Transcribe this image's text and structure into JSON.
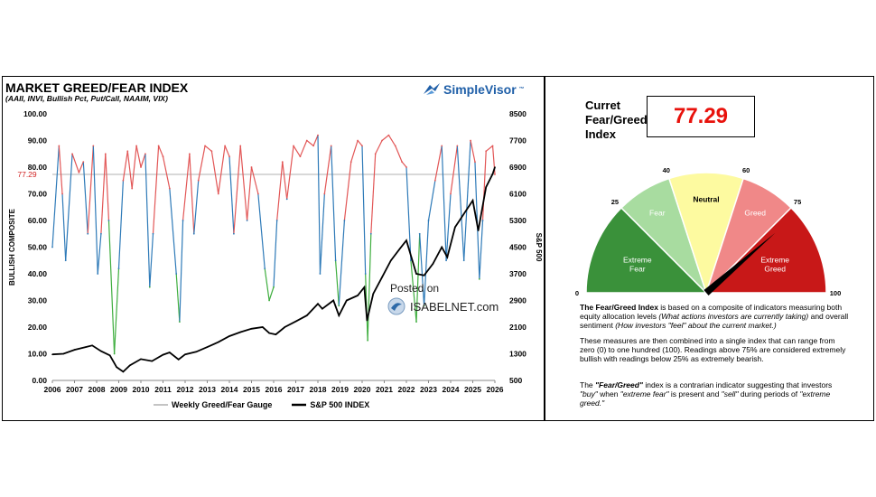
{
  "title": "MARKET GREED/FEAR INDEX",
  "subtitle": "(AAII, INVI, Bullish Pct, Put/Call, NAAIM, VIX)",
  "brand": {
    "name": "SimpleVisor",
    "tm": "™",
    "icon": "bird-logo-icon"
  },
  "watermark": {
    "posted_on": "Posted on",
    "site": "ISABELNET.com",
    "icon": "globe-logo-icon"
  },
  "colors": {
    "greed_red": "#e25656",
    "neutral_blue": "#2e7ab8",
    "fear_green": "#3fae3f",
    "sp500": "#000000",
    "refline": "#b0b0b0",
    "value_red": "#e8120c"
  },
  "chart_data": {
    "type": "line",
    "x_ticks": [
      "2006",
      "2007",
      "2008",
      "2009",
      "2010",
      "2011",
      "2012",
      "2013",
      "2014",
      "2015",
      "2016",
      "2017",
      "2018",
      "2019",
      "2020",
      "2021",
      "2022",
      "2023",
      "2024",
      "2025",
      "2026"
    ],
    "xlim": [
      2006,
      2026
    ],
    "y_left": {
      "label": "BULLISH COMPOSITE",
      "ticks": [
        "0.00",
        "10.00",
        "20.00",
        "30.00",
        "40.00",
        "50.00",
        "60.00",
        "70.00",
        "80.00",
        "90.00",
        "100.00"
      ],
      "ylim": [
        0,
        100
      ]
    },
    "y_right": {
      "label": "S&P 500",
      "ticks": [
        "500",
        "1300",
        "2100",
        "2900",
        "3700",
        "4500",
        "5300",
        "6100",
        "6900",
        "7700",
        "8500"
      ],
      "ylim": [
        500,
        8500
      ]
    },
    "current_marker": "77.29",
    "grid": false,
    "legend_position": "bottom",
    "series": [
      {
        "name": "Weekly Greed/Fear Gauge",
        "axis": "left",
        "x": [
          2006.0,
          2006.3,
          2006.45,
          2006.6,
          2006.9,
          2007.2,
          2007.4,
          2007.6,
          2007.85,
          2008.05,
          2008.2,
          2008.4,
          2008.55,
          2008.8,
          2009.0,
          2009.2,
          2009.4,
          2009.6,
          2009.8,
          2010.0,
          2010.2,
          2010.4,
          2010.55,
          2010.8,
          2011.0,
          2011.3,
          2011.6,
          2011.75,
          2011.9,
          2012.2,
          2012.4,
          2012.6,
          2012.9,
          2013.2,
          2013.5,
          2013.8,
          2014.0,
          2014.2,
          2014.5,
          2014.8,
          2015.0,
          2015.3,
          2015.6,
          2015.8,
          2016.0,
          2016.15,
          2016.4,
          2016.6,
          2016.9,
          2017.2,
          2017.5,
          2017.8,
          2018.0,
          2018.1,
          2018.3,
          2018.6,
          2018.8,
          2018.95,
          2019.2,
          2019.5,
          2019.8,
          2020.0,
          2020.15,
          2020.25,
          2020.4,
          2020.6,
          2020.9,
          2021.2,
          2021.5,
          2021.8,
          2022.0,
          2022.2,
          2022.45,
          2022.6,
          2022.8,
          2023.0,
          2023.3,
          2023.6,
          2023.8,
          2024.0,
          2024.3,
          2024.6,
          2024.9,
          2025.1,
          2025.3,
          2025.45,
          2025.6,
          2025.9,
          2026.0
        ],
        "values": [
          50,
          88,
          70,
          45,
          85,
          78,
          82,
          55,
          88,
          40,
          55,
          85,
          60,
          10,
          42,
          75,
          86,
          72,
          88,
          80,
          85,
          35,
          55,
          88,
          84,
          72,
          40,
          22,
          60,
          85,
          55,
          75,
          88,
          86,
          70,
          88,
          84,
          55,
          88,
          60,
          80,
          70,
          42,
          30,
          35,
          60,
          82,
          68,
          88,
          84,
          90,
          88,
          92,
          40,
          70,
          88,
          45,
          28,
          60,
          82,
          90,
          88,
          40,
          15,
          55,
          85,
          90,
          92,
          88,
          82,
          80,
          45,
          22,
          55,
          28,
          60,
          75,
          88,
          45,
          70,
          88,
          45,
          90,
          82,
          38,
          60,
          86,
          88,
          77.29
        ]
      },
      {
        "name": "S&P 500 INDEX",
        "axis": "right",
        "x": [
          2006.0,
          2006.5,
          2007.0,
          2007.5,
          2007.8,
          2008.2,
          2008.6,
          2008.9,
          2009.2,
          2009.5,
          2010.0,
          2010.5,
          2011.0,
          2011.3,
          2011.7,
          2012.0,
          2012.5,
          2013.0,
          2013.5,
          2014.0,
          2014.5,
          2015.0,
          2015.5,
          2015.8,
          2016.1,
          2016.5,
          2017.0,
          2017.5,
          2018.0,
          2018.2,
          2018.7,
          2018.95,
          2019.3,
          2019.8,
          2020.1,
          2020.22,
          2020.5,
          2020.9,
          2021.3,
          2021.7,
          2022.0,
          2022.45,
          2022.8,
          2023.2,
          2023.6,
          2023.85,
          2024.2,
          2024.6,
          2025.0,
          2025.25,
          2025.6,
          2025.9,
          2026.0
        ],
        "values": [
          1280,
          1300,
          1420,
          1500,
          1550,
          1380,
          1250,
          900,
          760,
          950,
          1140,
          1080,
          1270,
          1340,
          1130,
          1280,
          1360,
          1500,
          1650,
          1830,
          1950,
          2050,
          2100,
          1920,
          1880,
          2100,
          2270,
          2450,
          2800,
          2650,
          2900,
          2450,
          2900,
          3050,
          3300,
          2300,
          3100,
          3600,
          4100,
          4450,
          4700,
          3700,
          3650,
          4000,
          4500,
          4200,
          5100,
          5500,
          5900,
          5000,
          6300,
          6700,
          6900
        ]
      }
    ]
  },
  "legend": {
    "gauge_label": "Weekly Greed/Fear Gauge",
    "sp_label": "S&P 500 INDEX"
  },
  "gauge": {
    "box_label": "Curret\nFear/Greed\nIndex",
    "value": 77.29,
    "value_text": "77.29",
    "scale_labels": [
      "0",
      "25",
      "40",
      "60",
      "75",
      "100"
    ],
    "segments": [
      {
        "label": "Extreme\nFear",
        "from": 0,
        "to": 25,
        "color": "#3a913a"
      },
      {
        "label": "Fear",
        "from": 25,
        "to": 40,
        "color": "#a8dca0"
      },
      {
        "label": "Neutral",
        "from": 40,
        "to": 60,
        "color": "#fdfaa0"
      },
      {
        "label": "Greed",
        "from": 60,
        "to": 75,
        "color": "#f08888"
      },
      {
        "label": "Extreme\nGreed",
        "from": 75,
        "to": 100,
        "color": "#c81818"
      }
    ]
  },
  "description": {
    "p1_lead": "The Fear/Greed Index",
    "p1_a": " is based on a composite of indicators measuring both equity allocation levels ",
    "p1_b": "(What actions investors are currently taking)",
    "p1_c": " and overall sentiment ",
    "p1_d": "(How investors \"feel\" about the current market.)",
    "p2": "These measures are then combined into a single index that can range from zero (0) to one hundred (100). Readings above 75% are considered extremely bullish with readings below 25% as extremely bearish.",
    "p3_a": "The ",
    "p3_b": "\"Fear/Greed\"",
    "p3_c": " index is a contrarian indicator suggesting that investors ",
    "p3_d": "\"buy\"",
    "p3_e": " when ",
    "p3_f": "\"extreme fear\"",
    "p3_g": " is present and ",
    "p3_h": "\"sell\"",
    "p3_i": " during periods of ",
    "p3_j": "\"extreme greed.\""
  }
}
